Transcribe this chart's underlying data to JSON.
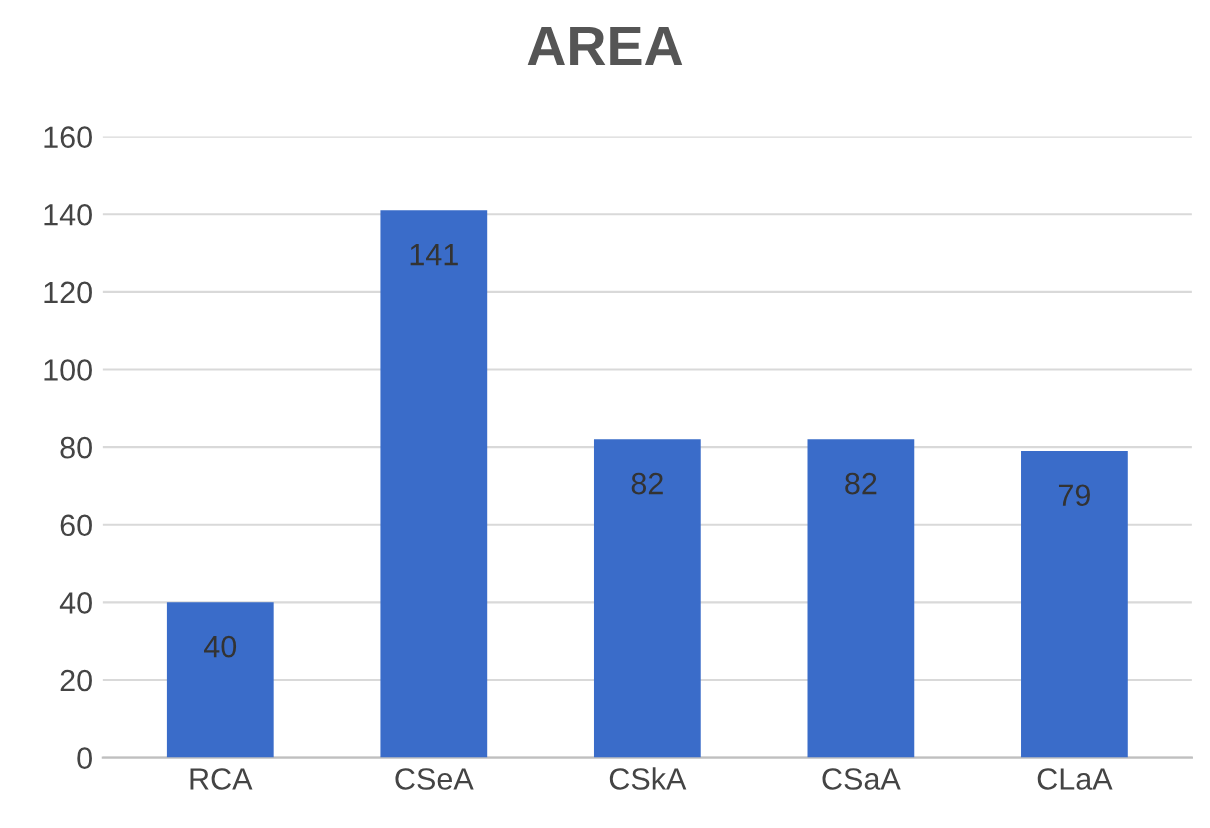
{
  "chart_data": {
    "type": "bar",
    "title": "AREA",
    "categories": [
      "RCA",
      "CSeA",
      "CSkA",
      "CSaA",
      "CLaA"
    ],
    "values": [
      40,
      141,
      82,
      82,
      79
    ],
    "color": "#3a6cc9",
    "ylim": [
      0,
      160
    ],
    "yticks": [
      0,
      20,
      40,
      60,
      80,
      100,
      120,
      140,
      160
    ],
    "grid": "y",
    "data_labels": true
  }
}
